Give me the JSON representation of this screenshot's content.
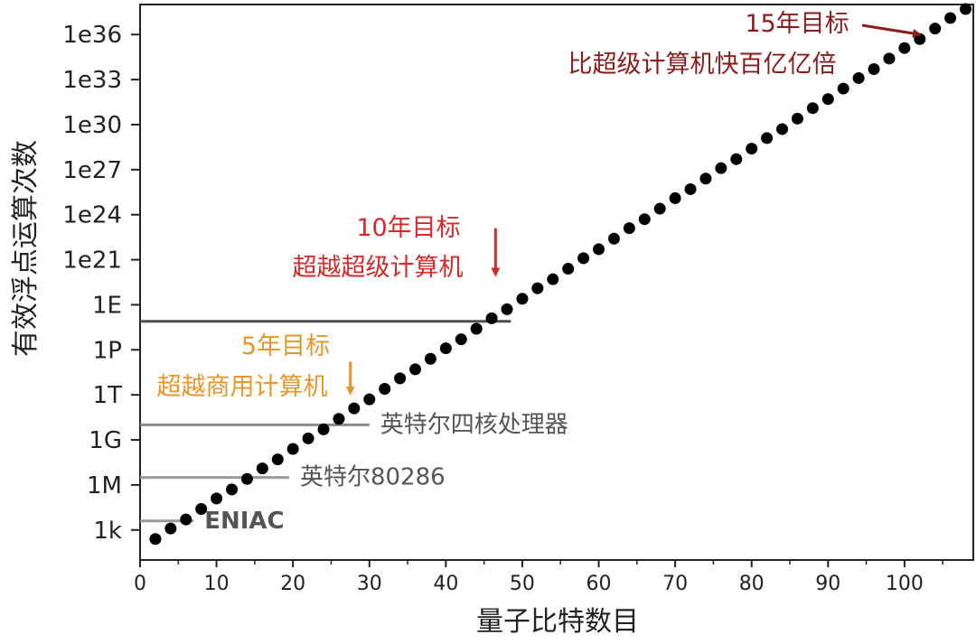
{
  "chart_data": {
    "type": "scatter",
    "xlabel": "量子比特数目",
    "ylabel": "有效浮点运算次数",
    "xlim": [
      0,
      109
    ],
    "ylim_log10": [
      1,
      38
    ],
    "x_ticks": [
      0,
      10,
      20,
      30,
      40,
      50,
      60,
      70,
      80,
      90,
      100
    ],
    "y_ticks": [
      {
        "label": "1k",
        "log10": 3
      },
      {
        "label": "1M",
        "log10": 6
      },
      {
        "label": "1G",
        "log10": 9
      },
      {
        "label": "1T",
        "log10": 12
      },
      {
        "label": "1P",
        "log10": 15
      },
      {
        "label": "1E",
        "log10": 18
      },
      {
        "label": "1e21",
        "log10": 21
      },
      {
        "label": "1e24",
        "log10": 24
      },
      {
        "label": "1e27",
        "log10": 27
      },
      {
        "label": "1e30",
        "log10": 30
      },
      {
        "label": "1e33",
        "log10": 33
      },
      {
        "label": "1e36",
        "log10": 36
      }
    ],
    "series": [
      {
        "x": [
          2,
          4,
          6,
          8,
          10,
          12,
          14,
          16,
          18,
          20,
          22,
          24,
          26,
          28,
          30,
          32,
          34,
          36,
          38,
          40,
          42,
          44,
          46,
          48,
          50,
          52,
          54,
          56,
          58,
          60,
          62,
          64,
          66,
          68,
          70,
          72,
          74,
          76,
          78,
          80,
          82,
          84,
          86,
          88,
          90,
          92,
          94,
          96,
          98,
          100,
          102,
          104,
          106,
          108
        ],
        "y_log10": [
          2.4,
          3.1,
          3.7,
          4.4,
          5.1,
          5.7,
          6.4,
          7.1,
          7.7,
          8.4,
          9.1,
          9.7,
          10.4,
          11.1,
          11.7,
          12.4,
          13.1,
          13.7,
          14.4,
          15.1,
          15.7,
          16.4,
          17.1,
          17.7,
          18.4,
          19.1,
          19.7,
          20.4,
          21.1,
          21.7,
          22.4,
          23.1,
          23.7,
          24.4,
          25.1,
          25.7,
          26.4,
          27.1,
          27.7,
          28.4,
          29.1,
          29.7,
          30.4,
          31.1,
          31.7,
          32.4,
          33.1,
          33.7,
          34.4,
          35.1,
          35.7,
          36.4,
          37.1,
          37.7
        ],
        "color": "#000000"
      }
    ],
    "reference_lines": [
      {
        "label": "ENIAC",
        "y_log10": 3.6,
        "x_end": 7,
        "color": "#9a9a9a",
        "label_color": "#555555",
        "bold": true
      },
      {
        "label": "英特尔80286",
        "y_log10": 6.5,
        "x_end": 19.5,
        "color": "#9a9a9a",
        "label_color": "#555555",
        "bold": false
      },
      {
        "label": "英特尔四核处理器",
        "y_log10": 10,
        "x_end": 30,
        "color": "#888888",
        "label_color": "#555555",
        "bold": false
      },
      {
        "label": "",
        "y_log10": 16.9,
        "x_end": 48.5,
        "color": "#505050"
      }
    ],
    "annotations": [
      {
        "lines": [
          "5年目标",
          "超越商用计算机"
        ],
        "color": "#e8962a",
        "arrow_x": 27.5,
        "arrow_from_log10": 14.2,
        "arrow_to_log10": 12.2
      },
      {
        "lines": [
          "10年目标",
          "超越超级计算机"
        ],
        "color": "#d42a2a",
        "arrow_x": 46.5,
        "arrow_from_log10": 23.1,
        "arrow_to_log10": 20.1
      },
      {
        "lines": [
          "15年目标",
          "比超级计算机快百亿亿倍"
        ],
        "color": "#8b1c1c",
        "arrow_to_x": 102.5,
        "arrow_to_log10": 35.9
      }
    ]
  }
}
